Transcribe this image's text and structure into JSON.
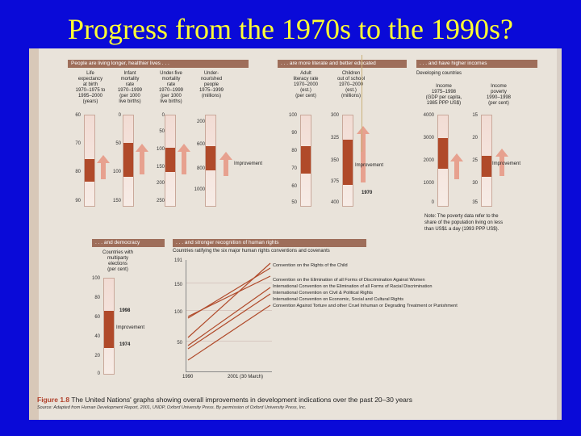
{
  "slide": {
    "title": "Progress from the 1970s to the 1990s?"
  },
  "panels": {
    "living": {
      "head": "People are living longer, healthier lives . . .",
      "cols": [
        {
          "label": "Life\nexpectancy\nat birth\n1970–1975 to\n1995–2000\n(years)",
          "ticks": [
            "60",
            "70",
            "80",
            "90"
          ]
        },
        {
          "label": "Infant\nmortality\nrate\n1970–1999\n(per 1000\nlive births)",
          "ticks": [
            "0",
            "50",
            "100",
            "150"
          ]
        },
        {
          "label": "Under-five\nmortality\nrate\n1970–1999\n(per 1000\nlive births)",
          "ticks": [
            "0",
            "50",
            "100",
            "150",
            "200",
            "250"
          ]
        },
        {
          "label": "Under-\nnourished\npeople\n1975–1999\n(millions)",
          "ticks": [
            "200",
            "600",
            "800",
            "1000"
          ]
        }
      ],
      "improvement": "Improvement"
    },
    "literate": {
      "head": ". . . are more literate and better educated",
      "cols": [
        {
          "label": "Adult\nliteracy rate\n1970–2000\n(est.)\n(per cent)",
          "ticks": [
            "100",
            "90",
            "80",
            "70",
            "60",
            "50"
          ]
        },
        {
          "label": "Children\nout of school\n1970–2000\n(est.)\n(millions)",
          "ticks": [
            "300",
            "325",
            "350",
            "375",
            "400"
          ]
        }
      ],
      "improvement": "Improvement",
      "year": "1970"
    },
    "incomes": {
      "head": ". . . and have higher incomes",
      "sub": "Developing countries",
      "cols": [
        {
          "label": "Income\n1975–1998\n(GDP per capita,\n1985 PPP US$)",
          "ticks": [
            "4000",
            "3000",
            "2000",
            "1000",
            "0"
          ]
        },
        {
          "label": "Income\npoverty\n1990–1998\n(per cent)",
          "ticks": [
            "15",
            "20",
            "25",
            "30",
            "35"
          ]
        }
      ],
      "improvement": "Improvement",
      "note": "Note: The poverty data refer to the\nshare of the population living on less\nthan US$1 a day (1993 PPP US$)."
    },
    "democracy": {
      "head": ". . . and democracy",
      "label": "Countries with\nmultiparty\nelections\n(per cent)",
      "ticks": [
        "100",
        "80",
        "60",
        "40",
        "20",
        "0"
      ],
      "year_top": "1998",
      "year_bottom": "1974",
      "improvement": "Improvement"
    },
    "rights": {
      "head": ". . . and stronger recognition of human rights",
      "sub": "Countries ratifying the six major human rights conventions and covenants",
      "ticks": [
        "191",
        "150",
        "100",
        "50"
      ],
      "x_start": "1990",
      "x_end": "2001 (30 March)",
      "conventions": [
        "Convention on the Rights of the Child",
        "Convention on the Elimination of all Forms of Discrimination Against Women",
        "International Convention on the Elimination of all Forms of Racial Discrimination",
        "International Convention on Civil & Political Rights",
        "International Convention on Economic, Social and Cultural Rights",
        "Convention Against Torture and other Cruel Inhuman or Degrading Treatment or Punishment"
      ]
    }
  },
  "figure": {
    "label": "Figure 1.8",
    "caption": "The United Nations' graphs showing overall improvements in development indications over the past 20–30 years",
    "source": "Source: Adapted from Human Development Report, 2001, UNDP, Oxford University Press. By permission of Oxford University Press, Inc."
  },
  "colors": {
    "slide_bg": "#0a0ad8",
    "title": "#ffff33",
    "panel_head": "#9e6e5a",
    "bar_fill": "#b04a2a",
    "arrow": "#e7a18f"
  }
}
